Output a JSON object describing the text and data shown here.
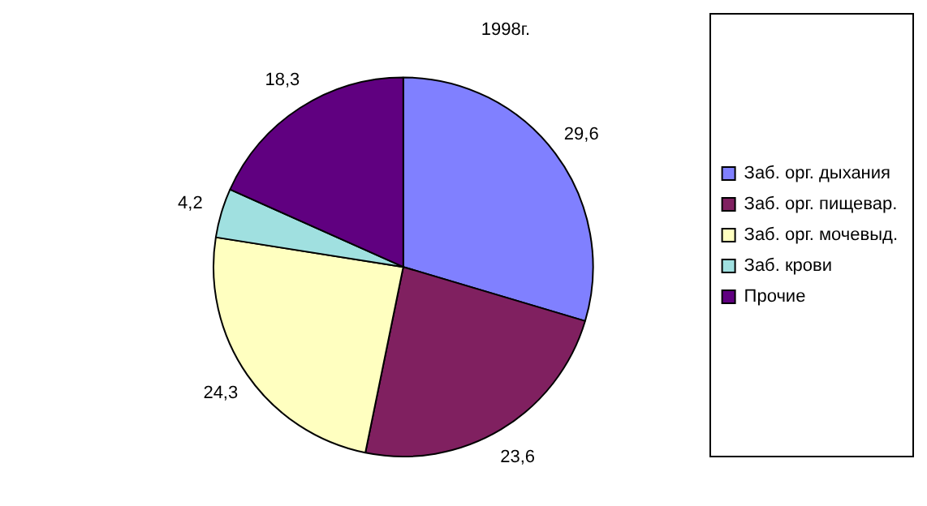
{
  "chart_data": {
    "type": "pie",
    "title": "1998г.",
    "categories": [
      "Заб. орг. дыхания",
      "Заб. орг. пищевар.",
      "Заб. орг. мочевыд.",
      "Заб. крови",
      "Прочие"
    ],
    "values": [
      29.6,
      23.6,
      24.3,
      4.2,
      18.3
    ],
    "value_labels": [
      "29,6",
      "23,6",
      "24,3",
      "4,2",
      "18,3"
    ],
    "colors": [
      "#8080ff",
      "#802060",
      "#ffffc0",
      "#a0e0e0",
      "#600080"
    ],
    "legend": "right"
  }
}
